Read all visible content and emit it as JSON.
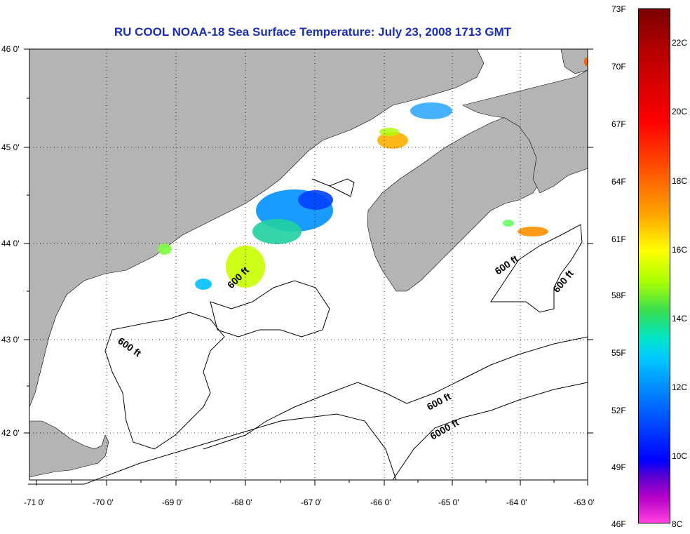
{
  "title": "RU COOL  NOAA-18  Sea Surface Temperature:  July 23, 2008 1713 GMT",
  "lat_labels": [
    "46 0'",
    "45 0'",
    "44 0'",
    "43 0'",
    "42 0'"
  ],
  "lon_labels": [
    "-71 0'",
    "-70 0'",
    "-69 0'",
    "-68 0'",
    "-67 0'",
    "-66 0'",
    "-65 0'",
    "-64 0'",
    "-63 0'"
  ],
  "contour_labels": [
    "600 ft",
    "600 ft",
    "600 ft",
    "600 ft",
    "600 ft",
    "6000 ft"
  ],
  "colorbar": {
    "fahrenheit": [
      "73F",
      "70F",
      "67F",
      "64F",
      "61F",
      "58F",
      "55F",
      "52F",
      "49F",
      "46F"
    ],
    "celsius": [
      "22C",
      "20C",
      "18C",
      "16C",
      "14C",
      "12C",
      "10C",
      "8C"
    ]
  },
  "colors": {
    "land": "#b4b4b4",
    "ocean": "#ffffff",
    "title": "#1a2fb8"
  }
}
